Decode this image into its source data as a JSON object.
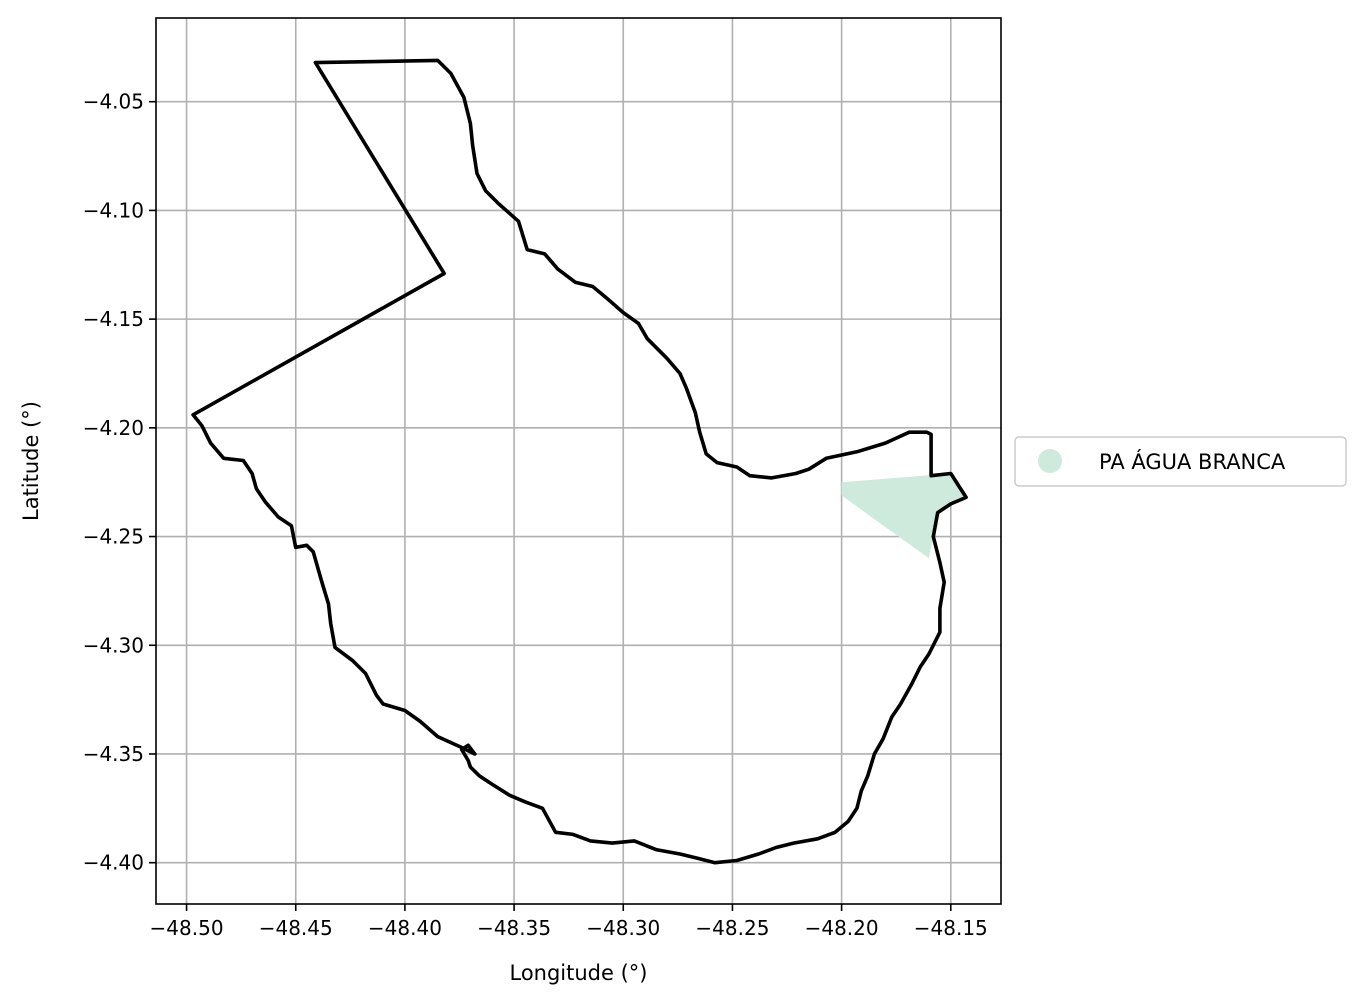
{
  "chart_data": {
    "type": "map",
    "xlabel": "Longitude (°)",
    "ylabel": "Latitude (°)",
    "xlim": [
      -48.514,
      -48.127
    ],
    "ylim": [
      -4.419,
      -4.0115
    ],
    "xticks": [
      -48.5,
      -48.45,
      -48.4,
      -48.35,
      -48.3,
      -48.25,
      -48.2,
      -48.15
    ],
    "xtick_labels": [
      "−48.50",
      "−48.45",
      "−48.40",
      "−48.35",
      "−48.30",
      "−48.25",
      "−48.20",
      "−48.15"
    ],
    "yticks": [
      -4.05,
      -4.1,
      -4.15,
      -4.2,
      -4.25,
      -4.3,
      -4.35,
      -4.4
    ],
    "ytick_labels": [
      "−4.05",
      "−4.10",
      "−4.15",
      "−4.20",
      "−4.25",
      "−4.30",
      "−4.35",
      "−4.40"
    ],
    "grid": true,
    "legend": {
      "placement": "right",
      "entries": [
        {
          "name": "PA ÁGUA BRANCA",
          "color": "#cdeadd"
        }
      ]
    },
    "boundary": {
      "color": "#000000",
      "coords": [
        [
          -48.441,
          -4.032
        ],
        [
          -48.385,
          -4.031
        ],
        [
          -48.379,
          -4.037
        ],
        [
          -48.373,
          -4.048
        ],
        [
          -48.37,
          -4.06
        ],
        [
          -48.369,
          -4.07
        ],
        [
          -48.367,
          -4.083
        ],
        [
          -48.363,
          -4.091
        ],
        [
          -48.357,
          -4.097
        ],
        [
          -48.348,
          -4.105
        ],
        [
          -48.344,
          -4.118
        ],
        [
          -48.336,
          -4.12
        ],
        [
          -48.33,
          -4.127
        ],
        [
          -48.322,
          -4.133
        ],
        [
          -48.314,
          -4.135
        ],
        [
          -48.308,
          -4.14
        ],
        [
          -48.3,
          -4.147
        ],
        [
          -48.293,
          -4.152
        ],
        [
          -48.289,
          -4.159
        ],
        [
          -48.28,
          -4.168
        ],
        [
          -48.274,
          -4.175
        ],
        [
          -48.271,
          -4.182
        ],
        [
          -48.267,
          -4.193
        ],
        [
          -48.265,
          -4.202
        ],
        [
          -48.262,
          -4.212
        ],
        [
          -48.257,
          -4.216
        ],
        [
          -48.248,
          -4.218
        ],
        [
          -48.242,
          -4.222
        ],
        [
          -48.232,
          -4.223
        ],
        [
          -48.221,
          -4.221
        ],
        [
          -48.215,
          -4.219
        ],
        [
          -48.207,
          -4.214
        ],
        [
          -48.193,
          -4.211
        ],
        [
          -48.18,
          -4.207
        ],
        [
          -48.169,
          -4.202
        ],
        [
          -48.161,
          -4.202
        ],
        [
          -48.159,
          -4.203
        ],
        [
          -48.159,
          -4.222
        ],
        [
          -48.15,
          -4.221
        ],
        [
          -48.143,
          -4.232
        ],
        [
          -48.15,
          -4.235
        ],
        [
          -48.156,
          -4.239
        ],
        [
          -48.158,
          -4.25
        ],
        [
          -48.155,
          -4.262
        ],
        [
          -48.153,
          -4.271
        ],
        [
          -48.155,
          -4.283
        ],
        [
          -48.155,
          -4.294
        ],
        [
          -48.16,
          -4.304
        ],
        [
          -48.164,
          -4.31
        ],
        [
          -48.168,
          -4.318
        ],
        [
          -48.173,
          -4.327
        ],
        [
          -48.177,
          -4.333
        ],
        [
          -48.181,
          -4.343
        ],
        [
          -48.185,
          -4.35
        ],
        [
          -48.188,
          -4.36
        ],
        [
          -48.191,
          -4.367
        ],
        [
          -48.193,
          -4.375
        ],
        [
          -48.197,
          -4.381
        ],
        [
          -48.203,
          -4.386
        ],
        [
          -48.211,
          -4.389
        ],
        [
          -48.222,
          -4.391
        ],
        [
          -48.23,
          -4.393
        ],
        [
          -48.238,
          -4.396
        ],
        [
          -48.248,
          -4.399
        ],
        [
          -48.258,
          -4.4
        ],
        [
          -48.266,
          -4.398
        ],
        [
          -48.274,
          -4.396
        ],
        [
          -48.285,
          -4.394
        ],
        [
          -48.295,
          -4.39
        ],
        [
          -48.305,
          -4.391
        ],
        [
          -48.315,
          -4.39
        ],
        [
          -48.323,
          -4.387
        ],
        [
          -48.331,
          -4.386
        ],
        [
          -48.337,
          -4.375
        ],
        [
          -48.345,
          -4.372
        ],
        [
          -48.352,
          -4.369
        ],
        [
          -48.36,
          -4.364
        ],
        [
          -48.366,
          -4.36
        ],
        [
          -48.37,
          -4.356
        ],
        [
          -48.371,
          -4.353
        ],
        [
          -48.374,
          -4.348
        ],
        [
          -48.371,
          -4.346
        ],
        [
          -48.368,
          -4.35
        ],
        [
          -48.374,
          -4.347
        ],
        [
          -48.385,
          -4.342
        ],
        [
          -48.393,
          -4.335
        ],
        [
          -48.4,
          -4.33
        ],
        [
          -48.41,
          -4.327
        ],
        [
          -48.413,
          -4.323
        ],
        [
          -48.418,
          -4.313
        ],
        [
          -48.424,
          -4.307
        ],
        [
          -48.432,
          -4.301
        ],
        [
          -48.434,
          -4.29
        ],
        [
          -48.435,
          -4.281
        ],
        [
          -48.438,
          -4.271
        ],
        [
          -48.442,
          -4.257
        ],
        [
          -48.445,
          -4.254
        ],
        [
          -48.45,
          -4.255
        ],
        [
          -48.452,
          -4.245
        ],
        [
          -48.458,
          -4.241
        ],
        [
          -48.464,
          -4.234
        ],
        [
          -48.468,
          -4.228
        ],
        [
          -48.47,
          -4.221
        ],
        [
          -48.474,
          -4.215
        ],
        [
          -48.483,
          -4.214
        ],
        [
          -48.489,
          -4.207
        ],
        [
          -48.493,
          -4.199
        ],
        [
          -48.497,
          -4.194
        ],
        [
          -48.382,
          -4.129
        ],
        [
          -48.441,
          -4.032
        ]
      ]
    },
    "areas": [
      {
        "name": "PA ÁGUA BRANCA",
        "color": "#cdeadd",
        "coords": [
          [
            -48.2,
            -4.225
          ],
          [
            -48.175,
            -4.223
          ],
          [
            -48.15,
            -4.221
          ],
          [
            -48.143,
            -4.232
          ],
          [
            -48.15,
            -4.235
          ],
          [
            -48.156,
            -4.239
          ],
          [
            -48.158,
            -4.25
          ],
          [
            -48.16,
            -4.26
          ],
          [
            -48.185,
            -4.242
          ],
          [
            -48.2,
            -4.231
          ]
        ]
      }
    ]
  }
}
